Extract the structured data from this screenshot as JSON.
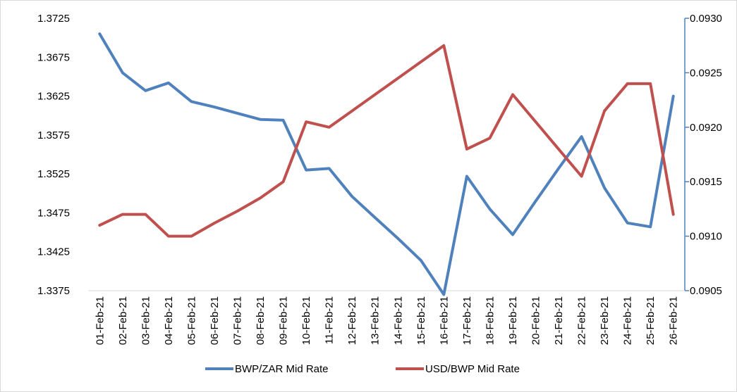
{
  "chart_data": {
    "type": "line",
    "title": "",
    "xlabel": "",
    "categories": [
      "01-Feb-21",
      "02-Feb-21",
      "03-Feb-21",
      "04-Feb-21",
      "05-Feb-21",
      "06-Feb-21",
      "07-Feb-21",
      "08-Feb-21",
      "09-Feb-21",
      "10-Feb-21",
      "11-Feb-21",
      "12-Feb-21",
      "13-Feb-21",
      "14-Feb-21",
      "15-Feb-21",
      "16-Feb-21",
      "17-Feb-21",
      "18-Feb-21",
      "19-Feb-21",
      "20-Feb-21",
      "21-Feb-21",
      "22-Feb-21",
      "23-Feb-21",
      "24-Feb-21",
      "25-Feb-21",
      "26-Feb-21"
    ],
    "y_left": {
      "ylim": [
        1.3375,
        1.3725
      ],
      "ticks": [
        "1.3375",
        "1.3425",
        "1.3475",
        "1.3525",
        "1.3575",
        "1.3625",
        "1.3675",
        "1.3725"
      ]
    },
    "y_right": {
      "ylim": [
        0.0905,
        0.093
      ],
      "ticks": [
        "0.0905",
        "0.0910",
        "0.0915",
        "0.0920",
        "0.0925",
        "0.0930"
      ]
    },
    "series": [
      {
        "name": "BWP/ZAR Mid Rate",
        "axis": "left",
        "color": "#4f81bd",
        "values": [
          1.3705,
          1.3655,
          1.3632,
          1.3642,
          1.3618,
          1.3611,
          1.3603,
          1.3595,
          1.3594,
          1.353,
          1.3532,
          1.3496,
          1.3469,
          1.3442,
          1.3414,
          1.337,
          1.3522,
          1.348,
          1.3447,
          1.349,
          1.3532,
          1.3573,
          1.3507,
          1.3462,
          1.3457,
          1.3625
        ]
      },
      {
        "name": "USD/BWP Mid Rate",
        "axis": "right",
        "color": "#c0504d",
        "values": [
          0.0911,
          0.0912,
          0.0912,
          0.091,
          0.091,
          0.09112,
          0.09123,
          0.09135,
          0.0915,
          0.09205,
          0.092,
          0.09215,
          0.0923,
          0.09245,
          0.0926,
          0.09275,
          0.0918,
          0.0919,
          0.0923,
          0.09205,
          0.0918,
          0.09155,
          0.09215,
          0.0924,
          0.0924,
          0.0912
        ]
      }
    ],
    "legend_position": "bottom",
    "grid": false
  }
}
